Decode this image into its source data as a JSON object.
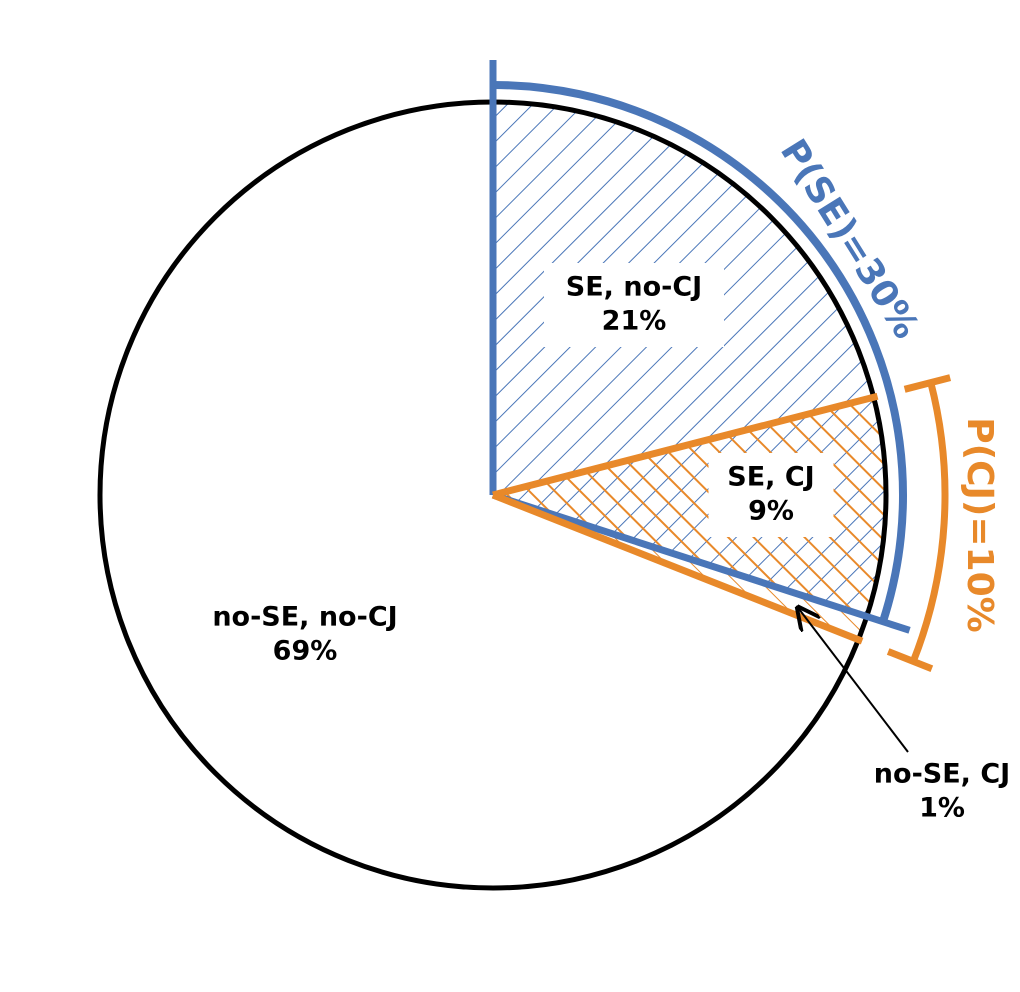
{
  "chart_data": {
    "type": "pie",
    "categories": [
      "SE, no-CJ",
      "SE, CJ",
      "no-SE, CJ",
      "no-SE, no-CJ"
    ],
    "values": [
      21,
      9,
      1,
      69
    ],
    "value_labels": [
      "21%",
      "9%",
      "1%",
      "69%"
    ],
    "annotations": [
      "P(SE)=30%",
      "P(CJ)=10%"
    ]
  }
}
